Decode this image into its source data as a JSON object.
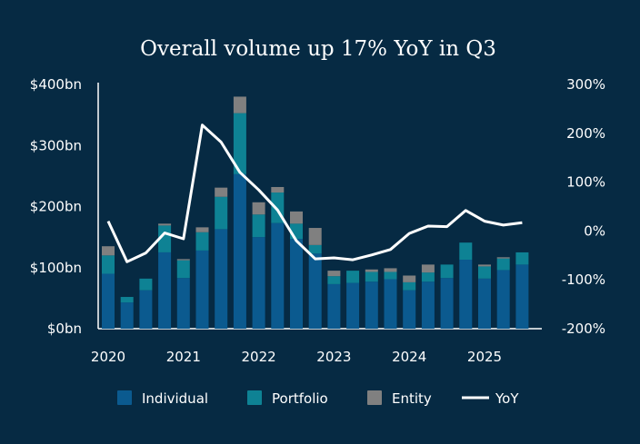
{
  "colors": {
    "background": "#062a43",
    "individual": "#0b5a8f",
    "portfolio": "#0e8294",
    "entity": "#808080",
    "yoy": "#ffffff",
    "axis": "#ffffff"
  },
  "chart_data": {
    "type": "bar",
    "subtype": "stacked bar with line on secondary axis",
    "title": "Overall volume up 17% YoY in Q3",
    "x_tick_labels": [
      "2020",
      "2021",
      "2022",
      "2023",
      "2024",
      "2025"
    ],
    "categories": [
      "2020 Q1",
      "2020 Q2",
      "2020 Q3",
      "2020 Q4",
      "2021 Q1",
      "2021 Q2",
      "2021 Q3",
      "2021 Q4",
      "2022 Q1",
      "2022 Q2",
      "2022 Q3",
      "2022 Q4",
      "2023 Q1",
      "2023 Q2",
      "2023 Q3",
      "2023 Q4",
      "2024 Q1",
      "2024 Q2",
      "2024 Q3",
      "2024 Q4",
      "2025 Q1",
      "2025 Q2",
      "2025 Q3"
    ],
    "series": [
      {
        "name": "Individual",
        "values": [
          90,
          43,
          63,
          125,
          83,
          128,
          163,
          253,
          150,
          173,
          147,
          123,
          73,
          75,
          77,
          81,
          63,
          77,
          83,
          113,
          82,
          96,
          105
        ]
      },
      {
        "name": "Portfolio",
        "values": [
          30,
          9,
          19,
          44,
          29,
          30,
          53,
          100,
          37,
          50,
          25,
          14,
          13,
          20,
          16,
          12,
          13,
          15,
          22,
          28,
          20,
          19,
          20
        ]
      },
      {
        "name": "Entity",
        "values": [
          15,
          0,
          0,
          3,
          2,
          8,
          15,
          27,
          20,
          9,
          20,
          28,
          9,
          0,
          4,
          6,
          11,
          13,
          0,
          0,
          3,
          2,
          0
        ]
      }
    ],
    "line_series": {
      "name": "YoY",
      "axis": "right",
      "values": [
        20,
        -63,
        -45,
        -4,
        -16,
        217,
        182,
        120,
        84,
        43,
        -20,
        -57,
        -55,
        -59,
        -49,
        -38,
        -5,
        10,
        9,
        42,
        20,
        12,
        17
      ]
    },
    "ylim_left": [
      0,
      400
    ],
    "yticks_left": [
      "$0bn",
      "$100bn",
      "$200bn",
      "$300bn",
      "$400bn"
    ],
    "ylim_right": [
      -200,
      300
    ],
    "yticks_right": [
      "-200%",
      "-100%",
      "0%",
      "100%",
      "200%",
      "300%"
    ],
    "grid": false,
    "legend_placement": "bottom-center",
    "legend": [
      "Individual",
      "Portfolio",
      "Entity",
      "YoY"
    ]
  }
}
